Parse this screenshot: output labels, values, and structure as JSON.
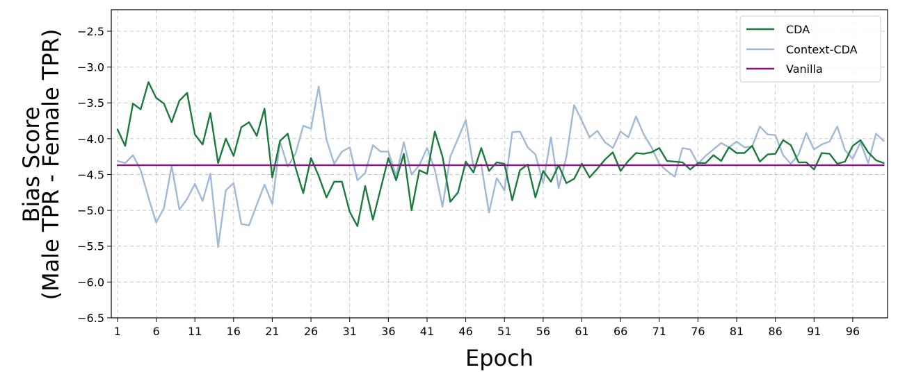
{
  "chart_data": {
    "type": "line",
    "title": "",
    "xlabel": "Epoch",
    "ylabel_lines": [
      "Bias Score",
      "(Male TPR - Female TPR)"
    ],
    "xlim": [
      0.2,
      100.5
    ],
    "ylim": [
      -6.5,
      -2.2
    ],
    "x_ticks": [
      1,
      6,
      11,
      16,
      21,
      26,
      31,
      36,
      41,
      46,
      51,
      56,
      61,
      66,
      71,
      76,
      81,
      86,
      91,
      96
    ],
    "y_ticks": [
      -2.5,
      -3.0,
      -3.5,
      -4.0,
      -4.5,
      -5.0,
      -5.5,
      -6.0,
      -6.5
    ],
    "y_tick_labels": [
      "−2.5",
      "−3.0",
      "−3.5",
      "−4.0",
      "−4.5",
      "−5.0",
      "−5.5",
      "−6.0",
      "−6.5"
    ],
    "grid": true,
    "legend_position": "top-right",
    "x": [
      1,
      2,
      3,
      4,
      5,
      6,
      7,
      8,
      9,
      10,
      11,
      12,
      13,
      14,
      15,
      16,
      17,
      18,
      19,
      20,
      21,
      22,
      23,
      24,
      25,
      26,
      27,
      28,
      29,
      30,
      31,
      32,
      33,
      34,
      35,
      36,
      37,
      38,
      39,
      40,
      41,
      42,
      43,
      44,
      45,
      46,
      47,
      48,
      49,
      50,
      51,
      52,
      53,
      54,
      55,
      56,
      57,
      58,
      59,
      60,
      61,
      62,
      63,
      64,
      65,
      66,
      67,
      68,
      69,
      70,
      71,
      72,
      73,
      74,
      75,
      76,
      77,
      78,
      79,
      80,
      81,
      82,
      83,
      84,
      85,
      86,
      87,
      88,
      89,
      90,
      91,
      92,
      93,
      94,
      95,
      96,
      97,
      98,
      99,
      100
    ],
    "series": [
      {
        "name": "CDA",
        "color": "#1a7a3c",
        "values": [
          -3.87,
          -4.1,
          -3.51,
          -3.59,
          -3.21,
          -3.43,
          -3.51,
          -3.77,
          -3.47,
          -3.36,
          -3.94,
          -4.08,
          -3.64,
          -4.34,
          -4.0,
          -4.24,
          -3.84,
          -3.77,
          -3.96,
          -3.58,
          -4.54,
          -4.03,
          -3.93,
          -4.4,
          -4.76,
          -4.27,
          -4.52,
          -4.82,
          -4.6,
          -4.6,
          -5.02,
          -5.22,
          -4.66,
          -5.13,
          -4.7,
          -4.27,
          -4.58,
          -4.21,
          -5.0,
          -4.44,
          -4.49,
          -3.9,
          -4.25,
          -4.88,
          -4.75,
          -4.32,
          -4.47,
          -4.13,
          -4.45,
          -4.33,
          -4.35,
          -4.86,
          -4.44,
          -4.36,
          -4.82,
          -4.45,
          -4.6,
          -4.37,
          -4.62,
          -4.56,
          -4.35,
          -4.54,
          -4.42,
          -4.29,
          -4.19,
          -4.45,
          -4.31,
          -4.2,
          -4.21,
          -4.19,
          -4.13,
          -4.31,
          -4.32,
          -4.33,
          -4.43,
          -4.34,
          -4.34,
          -4.23,
          -4.31,
          -4.12,
          -4.2,
          -4.2,
          -4.1,
          -4.32,
          -4.22,
          -4.21,
          -4.02,
          -4.09,
          -4.33,
          -4.33,
          -4.43,
          -4.2,
          -4.21,
          -4.35,
          -4.32,
          -4.1,
          -4.02,
          -4.19,
          -4.3,
          -4.34
        ]
      },
      {
        "name": "Context-CDA",
        "color": "#9fb9d6",
        "values": [
          -4.31,
          -4.34,
          -4.23,
          -4.44,
          -4.82,
          -5.17,
          -4.97,
          -4.38,
          -4.99,
          -4.84,
          -4.63,
          -4.87,
          -4.49,
          -5.51,
          -4.72,
          -4.62,
          -5.19,
          -5.21,
          -4.92,
          -4.64,
          -4.91,
          -4.04,
          -4.39,
          -4.21,
          -3.82,
          -3.86,
          -3.27,
          -4.01,
          -4.35,
          -4.18,
          -4.12,
          -4.58,
          -4.48,
          -4.09,
          -4.18,
          -4.18,
          -4.52,
          -4.05,
          -4.5,
          -4.37,
          -4.13,
          -4.43,
          -4.95,
          -4.25,
          -4.0,
          -3.74,
          -4.4,
          -4.36,
          -5.03,
          -4.55,
          -4.72,
          -3.91,
          -3.9,
          -4.12,
          -4.22,
          -4.62,
          -3.98,
          -4.69,
          -4.25,
          -3.53,
          -3.75,
          -3.98,
          -3.89,
          -4.05,
          -4.13,
          -3.9,
          -3.98,
          -3.69,
          -3.94,
          -4.12,
          -4.35,
          -4.45,
          -4.53,
          -4.13,
          -4.15,
          -4.35,
          -4.24,
          -4.15,
          -4.06,
          -4.12,
          -4.04,
          -4.12,
          -4.11,
          -3.83,
          -3.94,
          -3.95,
          -4.23,
          -4.35,
          -4.22,
          -3.92,
          -4.15,
          -4.08,
          -4.04,
          -3.83,
          -4.16,
          -4.28,
          -4.05,
          -4.34,
          -3.93,
          -4.03
        ]
      },
      {
        "name": "Vanilla",
        "color": "#8b0f83",
        "values": [
          -4.37,
          -4.37,
          -4.37,
          -4.37,
          -4.37,
          -4.37,
          -4.37,
          -4.37,
          -4.37,
          -4.37,
          -4.37,
          -4.37,
          -4.37,
          -4.37,
          -4.37,
          -4.37,
          -4.37,
          -4.37,
          -4.37,
          -4.37,
          -4.37,
          -4.37,
          -4.37,
          -4.37,
          -4.37,
          -4.37,
          -4.37,
          -4.37,
          -4.37,
          -4.37,
          -4.37,
          -4.37,
          -4.37,
          -4.37,
          -4.37,
          -4.37,
          -4.37,
          -4.37,
          -4.37,
          -4.37,
          -4.37,
          -4.37,
          -4.37,
          -4.37,
          -4.37,
          -4.37,
          -4.37,
          -4.37,
          -4.37,
          -4.37,
          -4.37,
          -4.37,
          -4.37,
          -4.37,
          -4.37,
          -4.37,
          -4.37,
          -4.37,
          -4.37,
          -4.37,
          -4.37,
          -4.37,
          -4.37,
          -4.37,
          -4.37,
          -4.37,
          -4.37,
          -4.37,
          -4.37,
          -4.37,
          -4.37,
          -4.37,
          -4.37,
          -4.37,
          -4.37,
          -4.37,
          -4.37,
          -4.37,
          -4.37,
          -4.37,
          -4.37,
          -4.37,
          -4.37,
          -4.37,
          -4.37,
          -4.37,
          -4.37,
          -4.37,
          -4.37,
          -4.37,
          -4.37,
          -4.37,
          -4.37,
          -4.37,
          -4.37,
          -4.37,
          -4.37,
          -4.37,
          -4.37,
          -4.37
        ]
      }
    ]
  }
}
